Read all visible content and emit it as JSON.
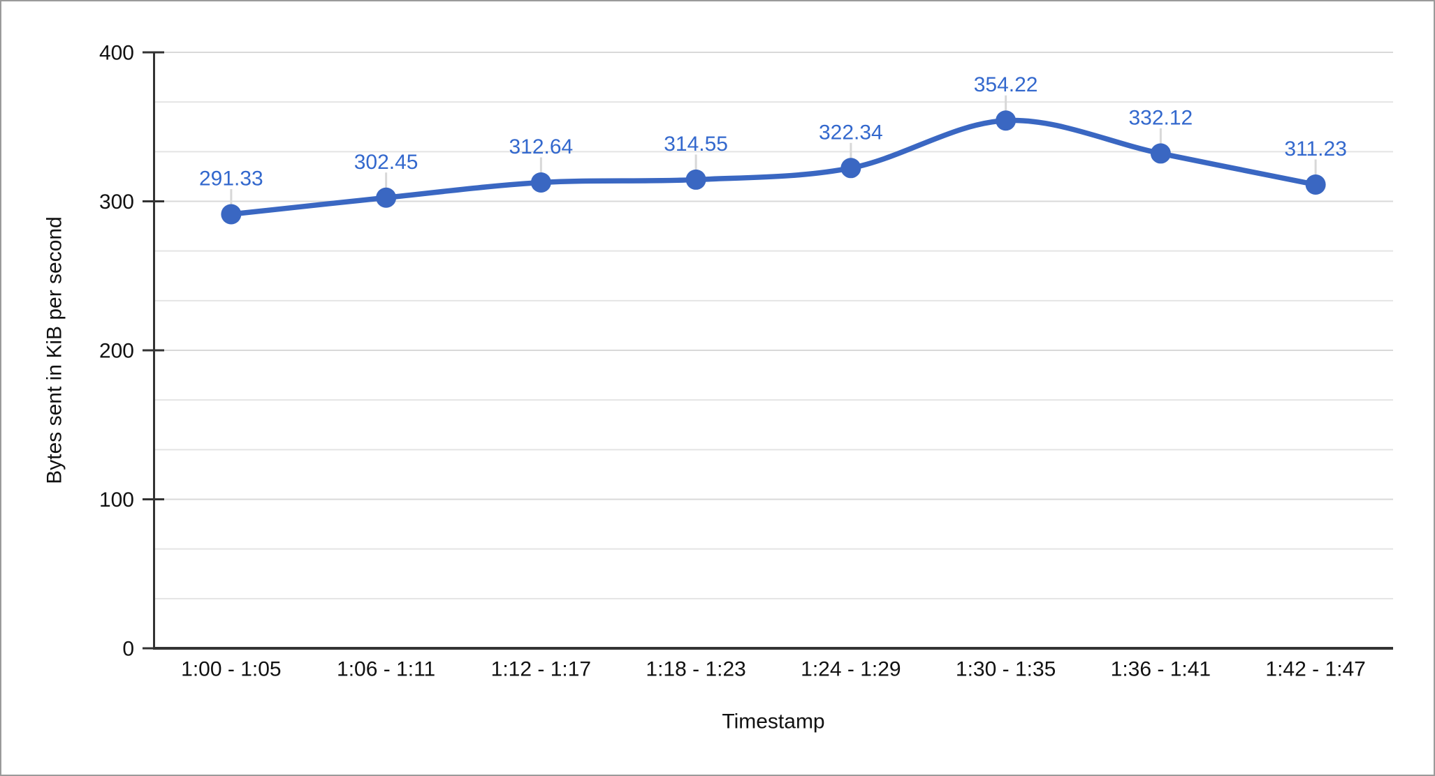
{
  "window": {
    "background": "#ffffff",
    "border_color": "#9a9a9a"
  },
  "chart_data": {
    "type": "line",
    "smooth": true,
    "legend": "none",
    "categories": [
      "1:00 - 1:05",
      "1:06 - 1:11",
      "1:12 - 1:17",
      "1:18 - 1:23",
      "1:24 - 1:29",
      "1:30 - 1:35",
      "1:36 - 1:41",
      "1:42 - 1:47"
    ],
    "values": [
      291.33,
      302.45,
      312.64,
      314.55,
      322.34,
      354.22,
      332.12,
      311.23
    ],
    "xlabel": "Timestamp",
    "ylabel": "Bytes sent in KiB per second",
    "ylim": [
      0,
      400
    ],
    "yticks": [
      0,
      100,
      200,
      300,
      400
    ],
    "minor_gridlines_between_majors": 2,
    "point_labels_visible": true,
    "colors": {
      "series": "#3A67C2",
      "point_label": "#3368CD",
      "minor_gridline": "#e4e4e4",
      "major_gridline": "#d9d9d9",
      "axis": "#333333",
      "axis_text": "#111111",
      "leader": "#d8d8d8"
    }
  }
}
